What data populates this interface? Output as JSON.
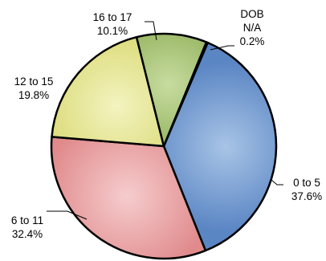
{
  "chart_data": {
    "type": "pie",
    "title": "",
    "slices": [
      {
        "category": "0 to 5",
        "value": 37.6,
        "value_label": "37.6%",
        "color": "#5b86c4",
        "highlight": "#a8c4e6"
      },
      {
        "category": "6 to 11",
        "value": 32.4,
        "value_label": "32.4%",
        "color": "#e08a8c",
        "highlight": "#f6cccd"
      },
      {
        "category": "12 to 15",
        "value": 19.8,
        "value_label": "19.8%",
        "color": "#d8d870",
        "highlight": "#f3f3c0"
      },
      {
        "category": "16 to 17",
        "value": 10.1,
        "value_label": "10.1%",
        "color": "#86a84c",
        "highlight": "#c7dca0"
      },
      {
        "category": "DOB N/A",
        "category_lines": [
          "DOB",
          "N/A"
        ],
        "value": 0.2,
        "value_label": "0.2%",
        "color": "#5b86c4",
        "highlight": "#a8c4e6"
      }
    ],
    "legend": "none",
    "slice_border_color": "#000000"
  }
}
